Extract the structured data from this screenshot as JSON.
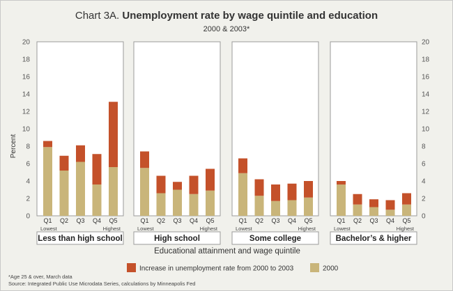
{
  "header": {
    "chart_number": "Chart 3A.",
    "title": "Unemployment rate by wage quintile and education",
    "subtitle": "2000 & 2003*"
  },
  "footer": {
    "note": "*Age 25 & over, March data",
    "source": "Source: Integrated Public Use Microdata Series, calculations by Minneapolis Fed"
  },
  "colors": {
    "base": "#c9b57a",
    "increase": "#c4512a",
    "panel_bg": "#ffffff",
    "page_bg": "#f1f1ec"
  },
  "chart_data": {
    "type": "bar",
    "stacked": true,
    "title": "Unemployment rate by wage quintile and education",
    "subtitle": "2000 & 2003*",
    "ylabel": "Percent",
    "xlabel": "Educational attainment and wage quintile",
    "ylim": [
      0,
      20
    ],
    "yticks": [
      0,
      2,
      4,
      6,
      8,
      10,
      12,
      14,
      16,
      18,
      20
    ],
    "categories": [
      "Q1",
      "Q2",
      "Q3",
      "Q4",
      "Q5"
    ],
    "quintile_sublabels": [
      "Lowest",
      "Highest"
    ],
    "legend": {
      "position": "bottom",
      "entries": [
        "Increase in unemployment rate from 2000 to 2003",
        "2000"
      ]
    },
    "groups": [
      {
        "name": "Less than high school",
        "base_2000": [
          7.9,
          5.2,
          6.2,
          3.6,
          5.6
        ],
        "increase": [
          0.7,
          1.7,
          1.9,
          3.5,
          7.5
        ]
      },
      {
        "name": "High school",
        "base_2000": [
          5.5,
          2.6,
          3.0,
          2.5,
          2.9
        ],
        "increase": [
          1.9,
          2.0,
          0.9,
          2.1,
          2.5
        ]
      },
      {
        "name": "Some college",
        "base_2000": [
          4.9,
          2.3,
          1.7,
          1.8,
          2.1
        ],
        "increase": [
          1.7,
          1.9,
          1.9,
          1.9,
          1.9
        ]
      },
      {
        "name": "Bachelor’s & higher",
        "base_2000": [
          3.6,
          1.3,
          1.0,
          0.7,
          1.3
        ],
        "increase": [
          0.4,
          1.2,
          0.9,
          1.1,
          1.3
        ]
      }
    ]
  }
}
